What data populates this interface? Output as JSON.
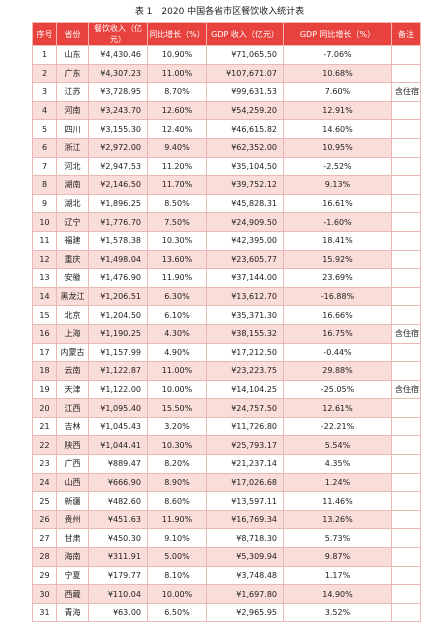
{
  "title": "表 1　2020 中国各省市区餐饮收入统计表",
  "table": {
    "header": [
      "序号",
      "省份",
      "餐饮收入（亿元）",
      "同比增长（%）",
      "GDP 收入（亿元）",
      "GDP 同比增长（%）",
      "备注"
    ],
    "rows": [
      [
        "1",
        "山东",
        "¥4,430.46",
        "10.90%",
        "¥71,065.50",
        "-7.06%"
      ],
      [
        "2",
        "广东",
        "¥4,307.23",
        "11.00%",
        "¥107,671.07",
        "10.68%"
      ],
      [
        "3",
        "江苏",
        "¥3,728.95",
        "8.70%",
        "¥99,631.53",
        "7.60%",
        "含住宿"
      ],
      [
        "4",
        "河南",
        "¥3,243.70",
        "12.60%",
        "¥54,259.20",
        "12.91%"
      ],
      [
        "5",
        "四川",
        "¥3,155.30",
        "12.40%",
        "¥46,615.82",
        "14.60%"
      ],
      [
        "6",
        "浙江",
        "¥2,972.00",
        "9.40%",
        "¥62,352.00",
        "10.95%"
      ],
      [
        "7",
        "河北",
        "¥2,947.53",
        "11.20%",
        "¥35,104.50",
        "-2.52%"
      ],
      [
        "8",
        "湖南",
        "¥2,146.50",
        "11.70%",
        "¥39,752.12",
        "9.13%"
      ],
      [
        "9",
        "湖北",
        "¥1,896.25",
        "8.50%",
        "¥45,828.31",
        "16.61%"
      ],
      [
        "10",
        "辽宁",
        "¥1,776.70",
        "7.50%",
        "¥24,909.50",
        "-1.60%"
      ],
      [
        "11",
        "福建",
        "¥1,578.38",
        "10.30%",
        "¥42,395.00",
        "18.41%"
      ],
      [
        "12",
        "重庆",
        "¥1,498.04",
        "13.60%",
        "¥23,605.77",
        "15.92%"
      ],
      [
        "13",
        "安徽",
        "¥1,476.90",
        "11.90%",
        "¥37,144.00",
        "23.69%"
      ],
      [
        "14",
        "黑龙江",
        "¥1,206.51",
        "6.30%",
        "¥13,612.70",
        "-16.88%"
      ],
      [
        "15",
        "北京",
        "¥1,204.50",
        "6.10%",
        "¥35,371.30",
        "16.66%"
      ],
      [
        "16",
        "上海",
        "¥1,190.25",
        "4.30%",
        "¥38,155.32",
        "16.75%",
        "含住宿"
      ],
      [
        "17",
        "内蒙古",
        "¥1,157.99",
        "4.90%",
        "¥17,212.50",
        "-0.44%"
      ],
      [
        "18",
        "云南",
        "¥1,122.87",
        "11.00%",
        "¥23,223.75",
        "29.88%"
      ],
      [
        "19",
        "天津",
        "¥1,122.00",
        "10.00%",
        "¥14,104.25",
        "-25.05%",
        "含住宿"
      ],
      [
        "20",
        "江西",
        "¥1,095.40",
        "15.50%",
        "¥24,757.50",
        "12.61%"
      ],
      [
        "21",
        "吉林",
        "¥1,045.43",
        "3.20%",
        "¥11,726.80",
        "-22.21%"
      ],
      [
        "22",
        "陕西",
        "¥1,044.41",
        "10.30%",
        "¥25,793.17",
        "5.54%"
      ],
      [
        "23",
        "广西",
        "¥889.47",
        "8.20%",
        "¥21,237.14",
        "4.35%"
      ],
      [
        "24",
        "山西",
        "¥666.90",
        "8.90%",
        "¥17,026.68",
        "1.24%"
      ],
      [
        "25",
        "新疆",
        "¥482.60",
        "8.60%",
        "¥13,597.11",
        "11.46%"
      ],
      [
        "26",
        "贵州",
        "¥451.63",
        "11.90%",
        "¥16,769.34",
        "13.26%"
      ],
      [
        "27",
        "甘肃",
        "¥450.30",
        "9.10%",
        "¥8,718.30",
        "5.73%"
      ],
      [
        "28",
        "海南",
        "¥311.91",
        "5.00%",
        "¥5,309.94",
        "9.87%"
      ],
      [
        "29",
        "宁夏",
        "¥179.77",
        "8.10%",
        "¥3,748.48",
        "1.17%"
      ],
      [
        "30",
        "西藏",
        "¥110.04",
        "10.00%",
        "¥1,697.80",
        "14.90%"
      ],
      [
        "31",
        "青海",
        "¥63.00",
        "6.50%",
        "¥2,965.95",
        "3.52%"
      ]
    ]
  }
}
